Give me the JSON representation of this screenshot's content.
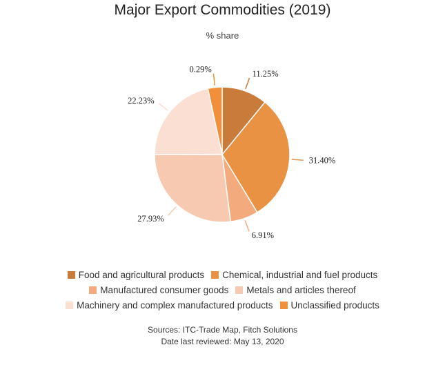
{
  "chart_data": {
    "type": "pie",
    "title": "Major Export Commodities (2019)",
    "subtitle": "% share",
    "categories": [
      "Food and agricultural products",
      "Chemical, industrial and fuel products",
      "Manufactured consumer goods",
      "Metals and articles thereof",
      "Machinery and complex manufactured products",
      "Unclassified products"
    ],
    "values": [
      11.25,
      31.4,
      6.91,
      27.93,
      22.23,
      0.29
    ],
    "value_labels": [
      "11.25%",
      "31.40%",
      "6.91%",
      "27.93%",
      "22.23%",
      "0.29%"
    ],
    "colors": [
      "#c97b3c",
      "#e99244",
      "#f3ab7d",
      "#f7c9b0",
      "#fadfd2",
      "#f28f3b"
    ],
    "legend": "bottom",
    "legend_rows": [
      [
        0,
        1
      ],
      [
        2,
        3
      ],
      [
        4,
        5
      ]
    ]
  },
  "footer": {
    "sources": "Sources: ITC-Trade Map, Fitch Solutions",
    "reviewed": "Date last reviewed: May 13, 2020"
  }
}
